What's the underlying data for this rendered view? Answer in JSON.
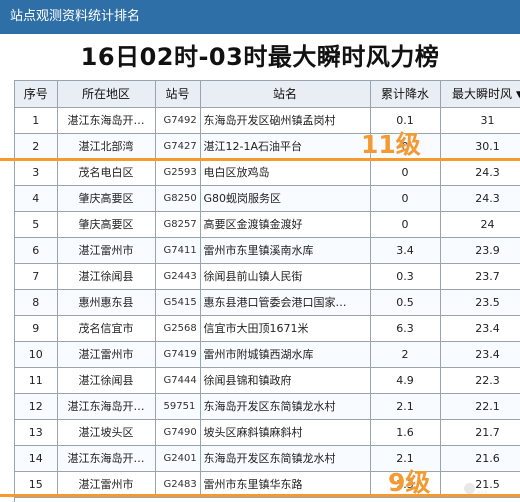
{
  "top_bar": {
    "title": "站点观测资料统计排名"
  },
  "headline": "16日02时-03时最大瞬时风力榜",
  "table": {
    "headers": {
      "index": "序号",
      "area": "所在地区",
      "station": "站号",
      "name": "站名",
      "rain": "累计降水",
      "wind": "最大瞬时风"
    },
    "rows": [
      {
        "index": "1",
        "area": "湛江东海岛开…",
        "station": "G7492",
        "name": "东海岛开发区硇州镇孟岗村",
        "rain": "0.1",
        "wind": "31"
      },
      {
        "index": "2",
        "area": "湛江北部湾",
        "station": "G7427",
        "name": "湛江12-1A石油平台",
        "rain": "0",
        "wind": "30.1"
      },
      {
        "index": "3",
        "area": "茂名电白区",
        "station": "G2593",
        "name": "电白区放鸡岛",
        "rain": "0",
        "wind": "24.3"
      },
      {
        "index": "4",
        "area": "肇庆高要区",
        "station": "G8250",
        "name": "G80蚬岗服务区",
        "rain": "0",
        "wind": "24.3"
      },
      {
        "index": "5",
        "area": "肇庆高要区",
        "station": "G8257",
        "name": "高要区金渡镇金渡好",
        "rain": "0",
        "wind": "24"
      },
      {
        "index": "6",
        "area": "湛江雷州市",
        "station": "G7411",
        "name": "雷州市东里镇溪南水库",
        "rain": "3.4",
        "wind": "23.9"
      },
      {
        "index": "7",
        "area": "湛江徐闻县",
        "station": "G2443",
        "name": "徐闻县前山镇人民街",
        "rain": "0.3",
        "wind": "23.7"
      },
      {
        "index": "8",
        "area": "惠州惠东县",
        "station": "G5415",
        "name": "惠东县港口管委会港口国家…",
        "rain": "0.5",
        "wind": "23.5"
      },
      {
        "index": "9",
        "area": "茂名信宜市",
        "station": "G2568",
        "name": "信宜市大田顶1671米",
        "rain": "6.3",
        "wind": "23.4"
      },
      {
        "index": "10",
        "area": "湛江雷州市",
        "station": "G7419",
        "name": "雷州市附城镇西湖水库",
        "rain": "2",
        "wind": "23.4"
      },
      {
        "index": "11",
        "area": "湛江徐闻县",
        "station": "G7444",
        "name": "徐闻县锦和镇政府",
        "rain": "4.9",
        "wind": "22.3"
      },
      {
        "index": "12",
        "area": "湛江东海岛开…",
        "station": "59751",
        "name": "东海岛开发区东简镇龙水村",
        "rain": "2.1",
        "wind": "22.1"
      },
      {
        "index": "13",
        "area": "湛江坡头区",
        "station": "G7490",
        "name": "坡头区麻斜镇麻斜村",
        "rain": "1.6",
        "wind": "21.7"
      },
      {
        "index": "14",
        "area": "湛江东海岛开…",
        "station": "G2401",
        "name": "东海岛开发区东简镇龙水村",
        "rain": "2.1",
        "wind": "21.6"
      },
      {
        "index": "15",
        "area": "湛江雷州市",
        "station": "G2483",
        "name": "雷州市东里镇华东路",
        "rain": "2.3",
        "wind": "21.5"
      }
    ]
  },
  "annotations": {
    "level_11": "11级",
    "level_9": "9级"
  },
  "watermark": "…",
  "colors": {
    "top_bar": "#2f6fa8",
    "annotation": "#f39a32",
    "header_bg": "#e9eef4",
    "grid": "#9aa4ad"
  }
}
